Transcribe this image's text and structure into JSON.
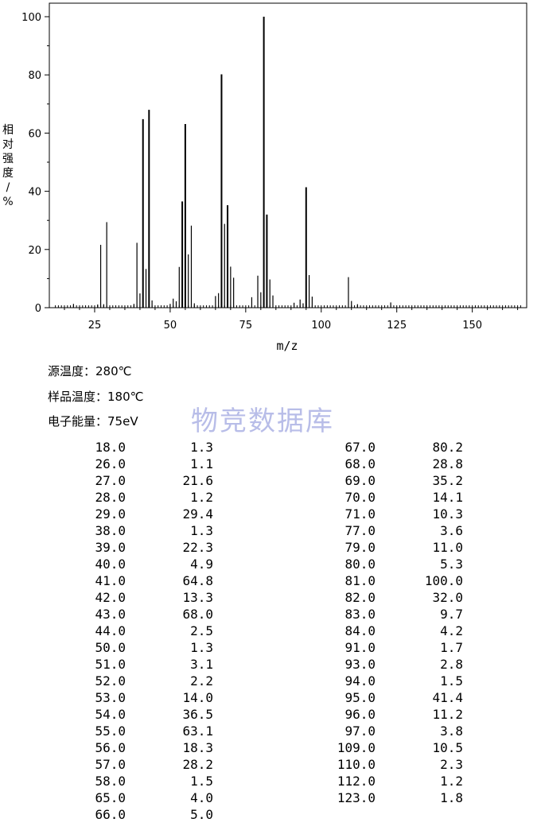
{
  "chart_data": {
    "type": "bar",
    "xlabel": "m/z",
    "ylabel": "相对强度/%",
    "xlim": [
      10,
      168
    ],
    "ylim": [
      0,
      100
    ],
    "x_ticks": [
      25,
      50,
      75,
      100,
      125,
      150
    ],
    "y_ticks": [
      0,
      20,
      40,
      60,
      80,
      100
    ],
    "points": [
      {
        "mz": 18.0,
        "intensity": 1.3
      },
      {
        "mz": 26.0,
        "intensity": 1.1
      },
      {
        "mz": 27.0,
        "intensity": 21.6
      },
      {
        "mz": 28.0,
        "intensity": 1.2
      },
      {
        "mz": 29.0,
        "intensity": 29.4
      },
      {
        "mz": 38.0,
        "intensity": 1.3
      },
      {
        "mz": 39.0,
        "intensity": 22.3
      },
      {
        "mz": 40.0,
        "intensity": 4.9
      },
      {
        "mz": 41.0,
        "intensity": 64.8
      },
      {
        "mz": 42.0,
        "intensity": 13.3
      },
      {
        "mz": 43.0,
        "intensity": 68.0
      },
      {
        "mz": 44.0,
        "intensity": 2.5
      },
      {
        "mz": 50.0,
        "intensity": 1.3
      },
      {
        "mz": 51.0,
        "intensity": 3.1
      },
      {
        "mz": 52.0,
        "intensity": 2.2
      },
      {
        "mz": 53.0,
        "intensity": 14.0
      },
      {
        "mz": 54.0,
        "intensity": 36.5
      },
      {
        "mz": 55.0,
        "intensity": 63.1
      },
      {
        "mz": 56.0,
        "intensity": 18.3
      },
      {
        "mz": 57.0,
        "intensity": 28.2
      },
      {
        "mz": 58.0,
        "intensity": 1.5
      },
      {
        "mz": 65.0,
        "intensity": 4.0
      },
      {
        "mz": 66.0,
        "intensity": 5.0
      },
      {
        "mz": 67.0,
        "intensity": 80.2
      },
      {
        "mz": 68.0,
        "intensity": 28.8
      },
      {
        "mz": 69.0,
        "intensity": 35.2
      },
      {
        "mz": 70.0,
        "intensity": 14.1
      },
      {
        "mz": 71.0,
        "intensity": 10.3
      },
      {
        "mz": 77.0,
        "intensity": 3.6
      },
      {
        "mz": 79.0,
        "intensity": 11.0
      },
      {
        "mz": 80.0,
        "intensity": 5.3
      },
      {
        "mz": 81.0,
        "intensity": 100.0
      },
      {
        "mz": 82.0,
        "intensity": 32.0
      },
      {
        "mz": 83.0,
        "intensity": 9.7
      },
      {
        "mz": 84.0,
        "intensity": 4.2
      },
      {
        "mz": 91.0,
        "intensity": 1.7
      },
      {
        "mz": 93.0,
        "intensity": 2.8
      },
      {
        "mz": 94.0,
        "intensity": 1.5
      },
      {
        "mz": 95.0,
        "intensity": 41.4
      },
      {
        "mz": 96.0,
        "intensity": 11.2
      },
      {
        "mz": 97.0,
        "intensity": 3.8
      },
      {
        "mz": 109.0,
        "intensity": 10.5
      },
      {
        "mz": 110.0,
        "intensity": 2.3
      },
      {
        "mz": 112.0,
        "intensity": 1.2
      },
      {
        "mz": 123.0,
        "intensity": 1.8
      }
    ],
    "color": "#000000"
  },
  "conditions": {
    "source_temp": "源温度：280℃",
    "sample_temp": "样品温度：180℃",
    "electron_energy": "电子能量：75eV"
  },
  "watermark": "物竞数据库",
  "peak_table": {
    "left": [
      [
        "18.0",
        "1.3"
      ],
      [
        "26.0",
        "1.1"
      ],
      [
        "27.0",
        "21.6"
      ],
      [
        "28.0",
        "1.2"
      ],
      [
        "29.0",
        "29.4"
      ],
      [
        "38.0",
        "1.3"
      ],
      [
        "39.0",
        "22.3"
      ],
      [
        "40.0",
        "4.9"
      ],
      [
        "41.0",
        "64.8"
      ],
      [
        "42.0",
        "13.3"
      ],
      [
        "43.0",
        "68.0"
      ],
      [
        "44.0",
        "2.5"
      ],
      [
        "50.0",
        "1.3"
      ],
      [
        "51.0",
        "3.1"
      ],
      [
        "52.0",
        "2.2"
      ],
      [
        "53.0",
        "14.0"
      ],
      [
        "54.0",
        "36.5"
      ],
      [
        "55.0",
        "63.1"
      ],
      [
        "56.0",
        "18.3"
      ],
      [
        "57.0",
        "28.2"
      ],
      [
        "58.0",
        "1.5"
      ],
      [
        "65.0",
        "4.0"
      ],
      [
        "66.0",
        "5.0"
      ]
    ],
    "right": [
      [
        "67.0",
        "80.2"
      ],
      [
        "68.0",
        "28.8"
      ],
      [
        "69.0",
        "35.2"
      ],
      [
        "70.0",
        "14.1"
      ],
      [
        "71.0",
        "10.3"
      ],
      [
        "77.0",
        "3.6"
      ],
      [
        "79.0",
        "11.0"
      ],
      [
        "80.0",
        "5.3"
      ],
      [
        "81.0",
        "100.0"
      ],
      [
        "82.0",
        "32.0"
      ],
      [
        "83.0",
        "9.7"
      ],
      [
        "84.0",
        "4.2"
      ],
      [
        "91.0",
        "1.7"
      ],
      [
        "93.0",
        "2.8"
      ],
      [
        "94.0",
        "1.5"
      ],
      [
        "95.0",
        "41.4"
      ],
      [
        "96.0",
        "11.2"
      ],
      [
        "97.0",
        "3.8"
      ],
      [
        "109.0",
        "10.5"
      ],
      [
        "110.0",
        "2.3"
      ],
      [
        "112.0",
        "1.2"
      ],
      [
        "123.0",
        "1.8"
      ]
    ]
  }
}
